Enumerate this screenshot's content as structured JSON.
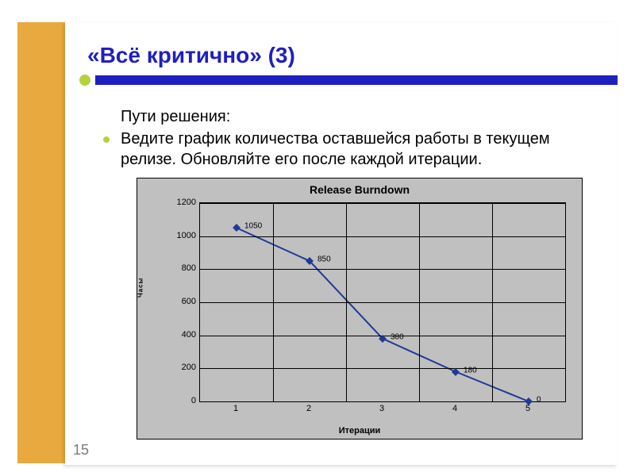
{
  "slide": {
    "title": "«Всё критично» (3)",
    "title_color": "#1f1fbf",
    "accent_bar_color": "#1f1fbf",
    "accent_dot_color": "#b5d23a",
    "background_side_color": "#e8a93f",
    "intro": "Пути решения:",
    "bullet": "Ведите график количества оставшейся работы в текущем релизе. Обновляйте его после каждой итерации.",
    "bullet_color": "#b5d23a",
    "page_number": "15"
  },
  "chart": {
    "type": "line",
    "title": "Release Burndown",
    "xlabel": "Итерации",
    "ylabel": "Часы",
    "categories": [
      "1",
      "2",
      "3",
      "4",
      "5"
    ],
    "values": [
      1050,
      850,
      380,
      180,
      0
    ],
    "data_labels": [
      "1050",
      "850",
      "380",
      "180",
      "0"
    ],
    "ylim": [
      0,
      1200
    ],
    "ytick_step": 200,
    "yticks": [
      "0",
      "200",
      "400",
      "600",
      "800",
      "1000",
      "1200"
    ],
    "line_color": "#1f3a93",
    "marker_color": "#1f3a93",
    "marker_shape": "diamond",
    "background_color": "#c0c0c0",
    "grid_color": "#000000",
    "title_fontsize": 14,
    "label_fontsize": 11,
    "line_width": 2
  }
}
